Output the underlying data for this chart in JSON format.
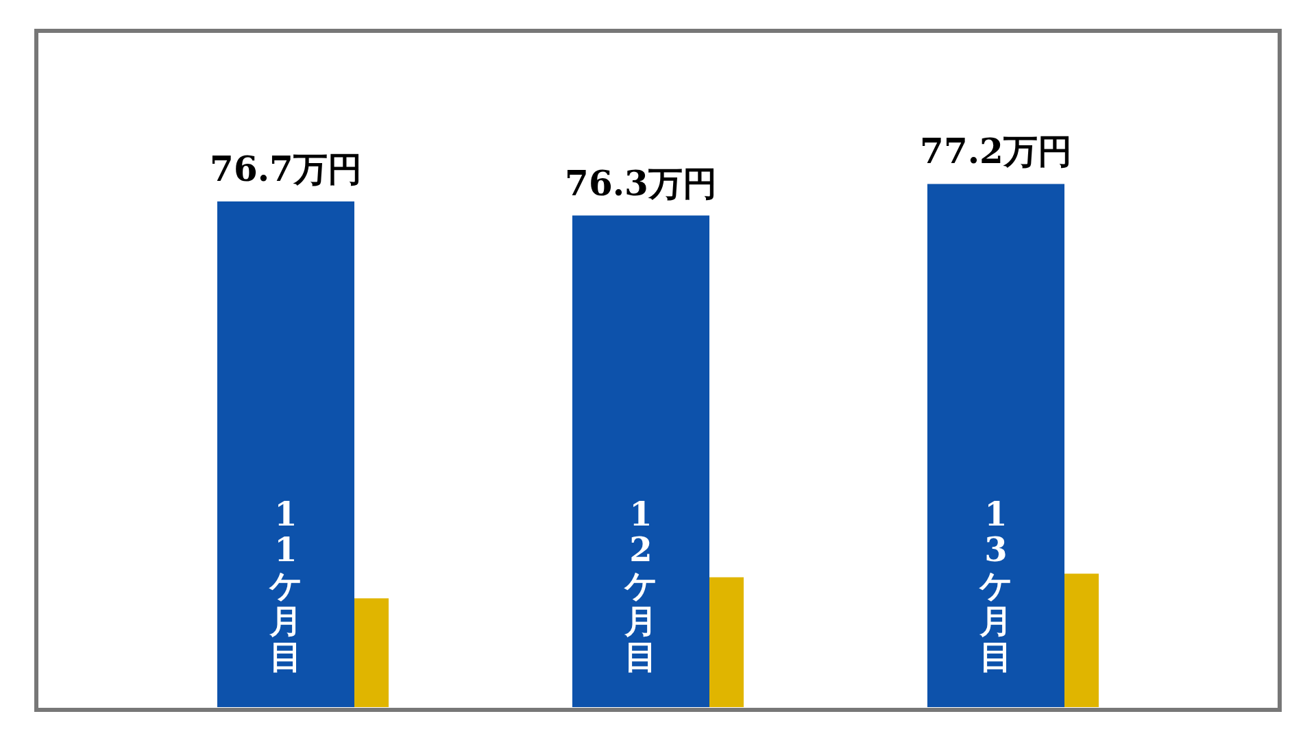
{
  "chart_data": {
    "type": "bar",
    "categories": [
      "11ケ月目",
      "12ケ月目",
      "13ケ月目"
    ],
    "ylim": [
      62.3,
      81.5
    ],
    "tick_labels": false,
    "grid": false,
    "legend": false,
    "series": [
      {
        "color": "#0d52ab",
        "values": [
          76.7,
          76.3,
          77.2
        ],
        "value_labels": [
          "76.7万円",
          "76.3万円",
          "77.2万円"
        ]
      },
      {
        "color": "#e0b500",
        "values": [
          65.4,
          66.0,
          66.1
        ]
      }
    ]
  }
}
